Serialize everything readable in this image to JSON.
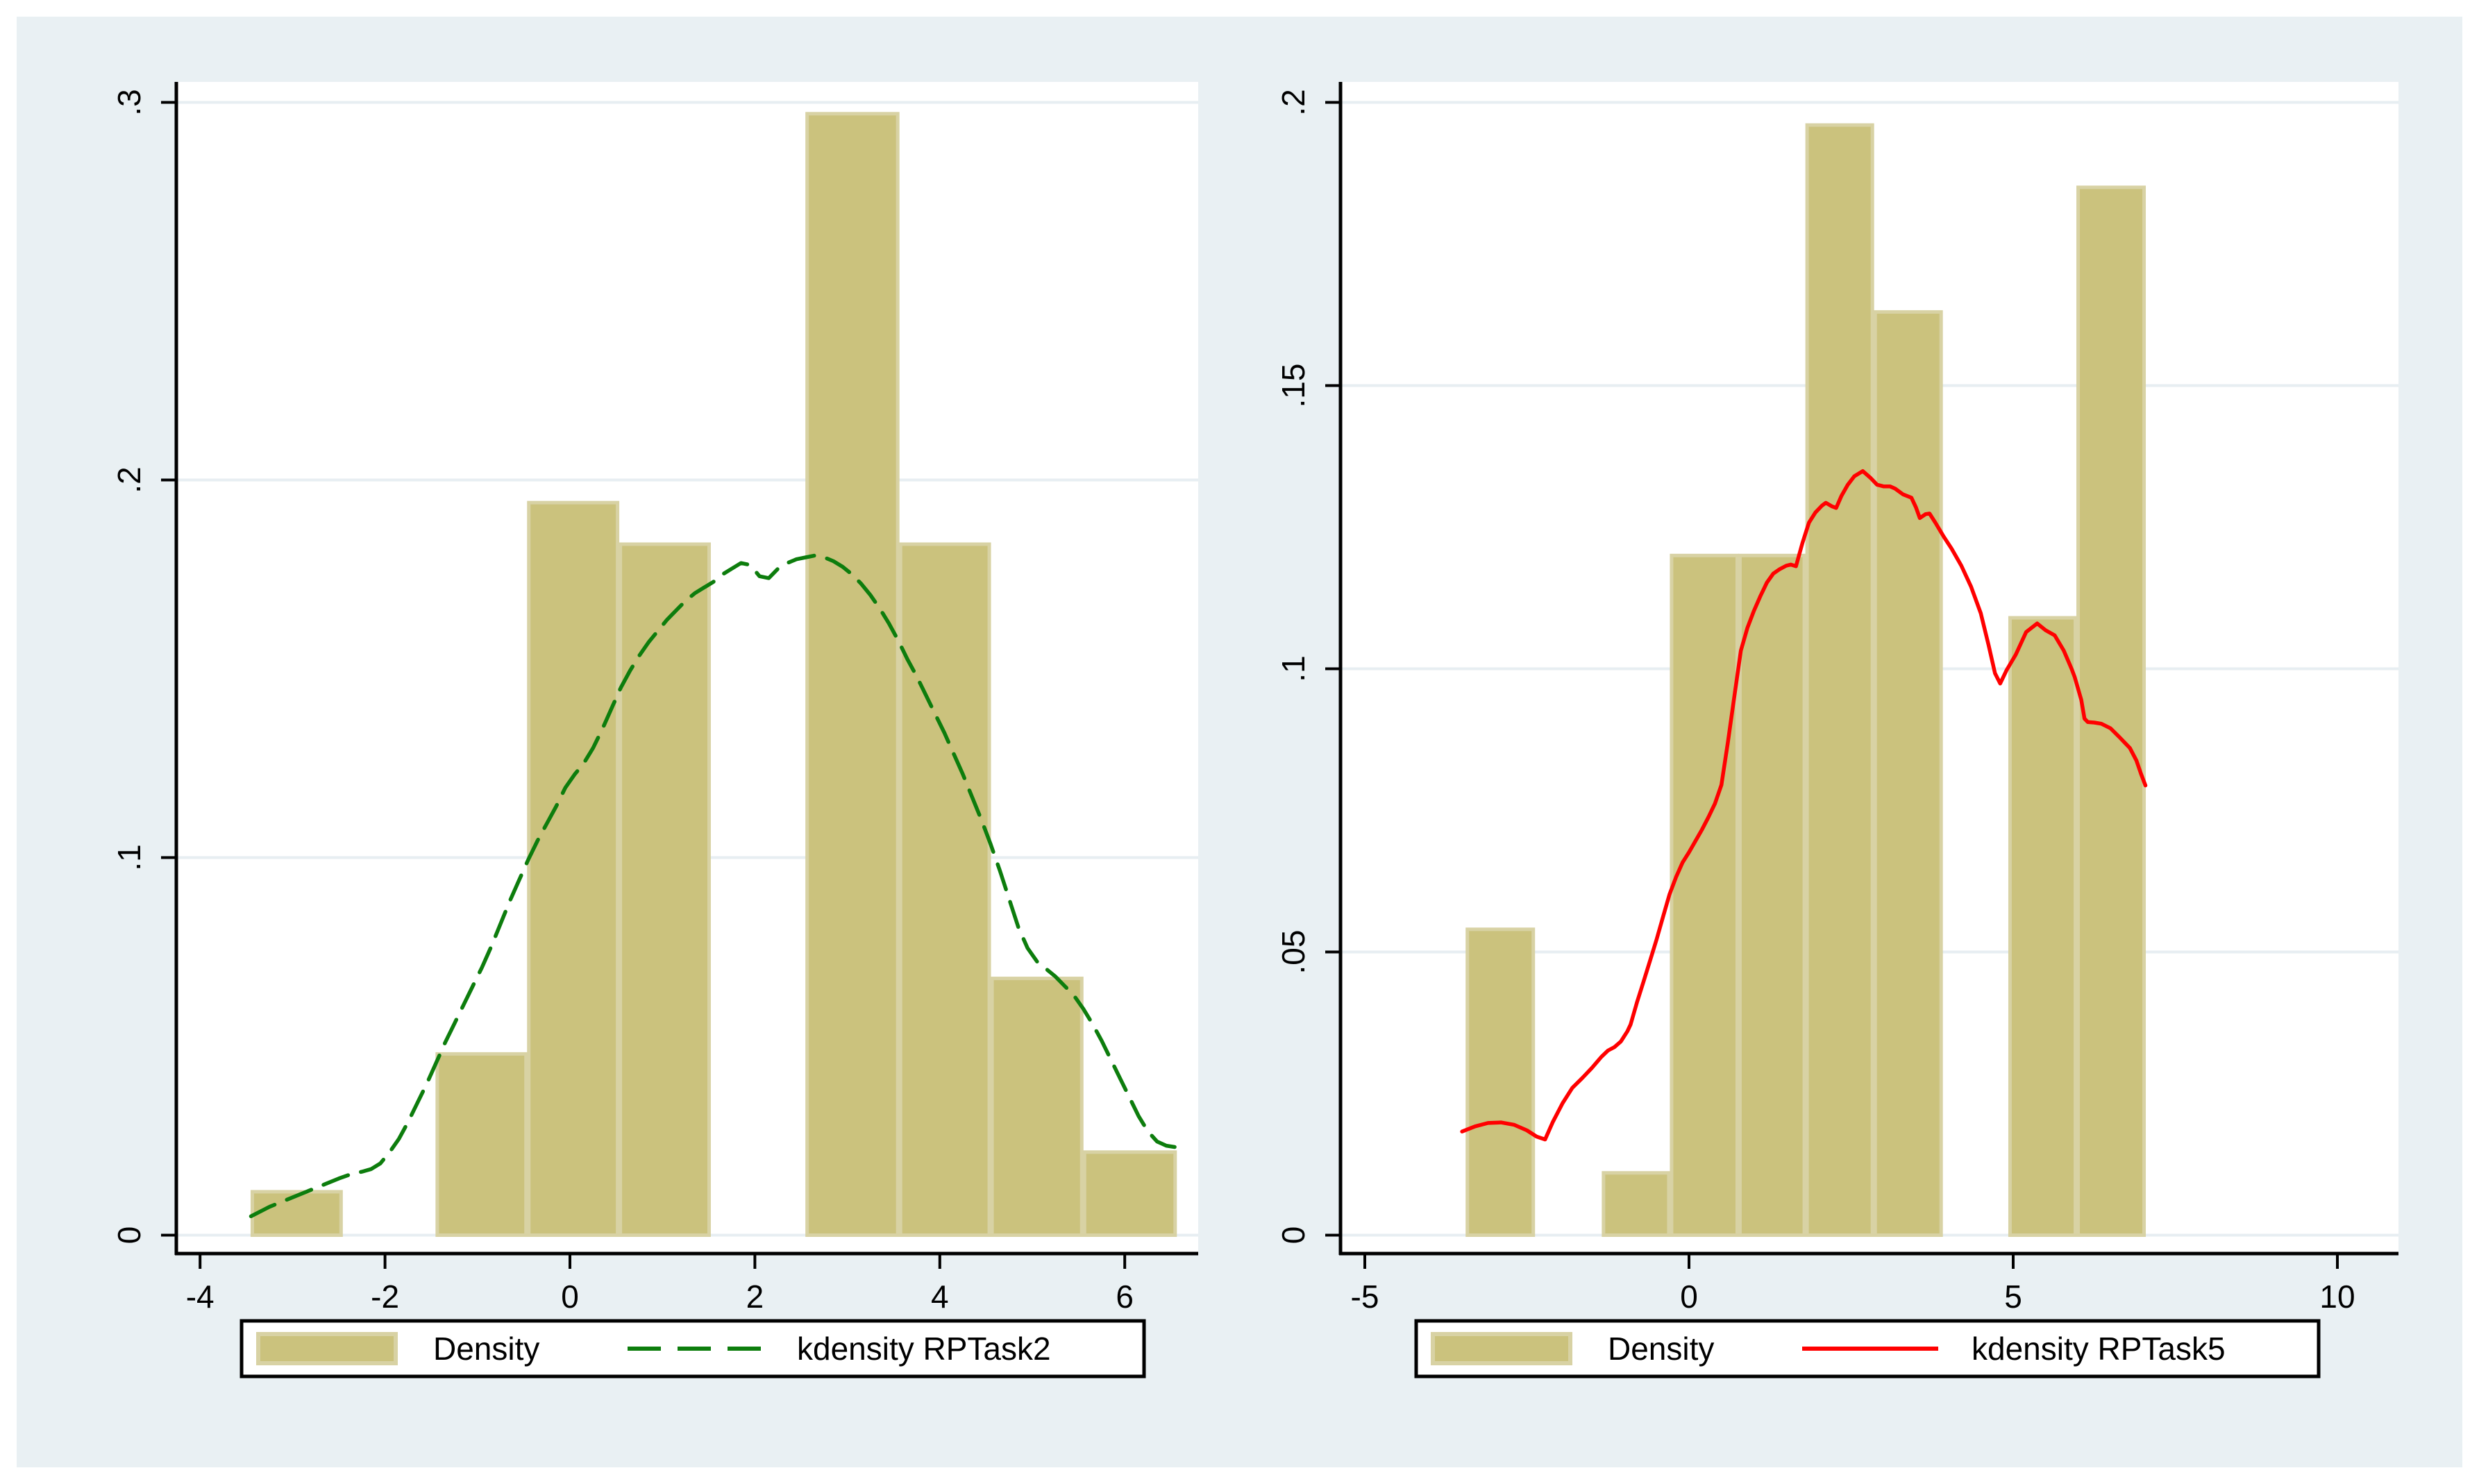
{
  "colors": {
    "page_bg": "#ffffff",
    "graph_bg": "#E9F0F3",
    "plot_bg": "#ffffff",
    "gridline": "#E7EEF2",
    "axis": "#000000",
    "bar_fill": "#CBC27D",
    "bar_stroke": "#D8D2A4",
    "kde_green": "#0D7D0D",
    "kde_red": "#FF0000",
    "legend_bg": "#ffffff",
    "legend_border": "#000000"
  },
  "chart_data": [
    {
      "type": "bar",
      "subtype": "histogram_with_kdensity",
      "panel": "left",
      "title": "",
      "xlabel": "",
      "ylabel": "",
      "xlim": [
        -4.26,
        6.79
      ],
      "ylim": [
        0,
        0.305
      ],
      "grid": true,
      "x_ticks": [
        {
          "value": -4,
          "label": "-4"
        },
        {
          "value": -2,
          "label": "-2"
        },
        {
          "value": 0,
          "label": "0"
        },
        {
          "value": 2,
          "label": "2"
        },
        {
          "value": 4,
          "label": "4"
        },
        {
          "value": 6,
          "label": "6"
        }
      ],
      "y_ticks": [
        {
          "value": 0,
          "label": "0"
        },
        {
          "value": 0.1,
          "label": ".1"
        },
        {
          "value": 0.2,
          "label": ".2"
        },
        {
          "value": 0.3,
          "label": ".3"
        }
      ],
      "bars": [
        {
          "x0": -3.45,
          "x1": -2.46,
          "height": 0.0115
        },
        {
          "x0": -1.45,
          "x1": -0.46,
          "height": 0.048
        },
        {
          "x0": -0.46,
          "x1": 0.53,
          "height": 0.194
        },
        {
          "x0": 0.53,
          "x1": 1.52,
          "height": 0.183
        },
        {
          "x0": 2.55,
          "x1": 3.56,
          "height": 0.297
        },
        {
          "x0": 3.56,
          "x1": 4.55,
          "height": 0.183
        },
        {
          "x0": 4.55,
          "x1": 5.55,
          "height": 0.068
        },
        {
          "x0": 5.55,
          "x1": 6.56,
          "height": 0.022
        }
      ],
      "kde": {
        "name": "kdensity RPTask2",
        "color": "#0D7D0D",
        "dashed": true,
        "points": [
          [
            -3.45,
            0.005
          ],
          [
            -3.25,
            0.0075
          ],
          [
            -3.05,
            0.0095
          ],
          [
            -2.85,
            0.0115
          ],
          [
            -2.65,
            0.0135
          ],
          [
            -2.5,
            0.015
          ],
          [
            -2.35,
            0.0163
          ],
          [
            -2.25,
            0.0168
          ],
          [
            -2.15,
            0.0175
          ],
          [
            -2.05,
            0.019
          ],
          [
            -1.95,
            0.022
          ],
          [
            -1.85,
            0.0255
          ],
          [
            -1.75,
            0.03
          ],
          [
            -1.65,
            0.035
          ],
          [
            -1.55,
            0.04
          ],
          [
            -1.45,
            0.0455
          ],
          [
            -1.35,
            0.051
          ],
          [
            -1.25,
            0.056
          ],
          [
            -1.15,
            0.061
          ],
          [
            -1.05,
            0.066
          ],
          [
            -0.95,
            0.071
          ],
          [
            -0.85,
            0.0765
          ],
          [
            -0.75,
            0.0825
          ],
          [
            -0.65,
            0.0885
          ],
          [
            -0.55,
            0.094
          ],
          [
            -0.45,
            0.0995
          ],
          [
            -0.35,
            0.1045
          ],
          [
            -0.25,
            0.109
          ],
          [
            -0.15,
            0.1135
          ],
          [
            -0.05,
            0.1185
          ],
          [
            0.05,
            0.122
          ],
          [
            0.15,
            0.125
          ],
          [
            0.25,
            0.129
          ],
          [
            0.35,
            0.134
          ],
          [
            0.45,
            0.1395
          ],
          [
            0.55,
            0.145
          ],
          [
            0.65,
            0.1495
          ],
          [
            0.75,
            0.1535
          ],
          [
            0.85,
            0.157
          ],
          [
            0.95,
            0.16
          ],
          [
            1.05,
            0.163
          ],
          [
            1.15,
            0.1655
          ],
          [
            1.25,
            0.168
          ],
          [
            1.35,
            0.17
          ],
          [
            1.45,
            0.1715
          ],
          [
            1.55,
            0.173
          ],
          [
            1.65,
            0.175
          ],
          [
            1.75,
            0.1765
          ],
          [
            1.85,
            0.178
          ],
          [
            1.95,
            0.1775
          ],
          [
            2.05,
            0.1745
          ],
          [
            2.15,
            0.174
          ],
          [
            2.25,
            0.1765
          ],
          [
            2.35,
            0.178
          ],
          [
            2.45,
            0.179
          ],
          [
            2.55,
            0.1795
          ],
          [
            2.65,
            0.18
          ],
          [
            2.75,
            0.1795
          ],
          [
            2.85,
            0.1785
          ],
          [
            2.95,
            0.177
          ],
          [
            3.05,
            0.175
          ],
          [
            3.15,
            0.1725
          ],
          [
            3.25,
            0.1695
          ],
          [
            3.35,
            0.166
          ],
          [
            3.45,
            0.162
          ],
          [
            3.55,
            0.1575
          ],
          [
            3.65,
            0.1525
          ],
          [
            3.75,
            0.148
          ],
          [
            3.85,
            0.143
          ],
          [
            3.95,
            0.138
          ],
          [
            4.05,
            0.133
          ],
          [
            4.15,
            0.1275
          ],
          [
            4.25,
            0.122
          ],
          [
            4.35,
            0.116
          ],
          [
            4.45,
            0.11
          ],
          [
            4.55,
            0.1035
          ],
          [
            4.65,
            0.0965
          ],
          [
            4.75,
            0.089
          ],
          [
            4.85,
            0.0815
          ],
          [
            4.95,
            0.076
          ],
          [
            5.05,
            0.0725
          ],
          [
            5.15,
            0.0705
          ],
          [
            5.25,
            0.0685
          ],
          [
            5.35,
            0.066
          ],
          [
            5.45,
            0.0635
          ],
          [
            5.55,
            0.06
          ],
          [
            5.65,
            0.056
          ],
          [
            5.75,
            0.0515
          ],
          [
            5.85,
            0.0465
          ],
          [
            5.95,
            0.0415
          ],
          [
            6.05,
            0.0365
          ],
          [
            6.15,
            0.0315
          ],
          [
            6.25,
            0.0275
          ],
          [
            6.35,
            0.0248
          ],
          [
            6.45,
            0.0237
          ],
          [
            6.55,
            0.0233
          ]
        ]
      },
      "legend": {
        "density_label": "Density",
        "kde_label": "kdensity RPTask2"
      }
    },
    {
      "type": "bar",
      "subtype": "histogram_with_kdensity",
      "panel": "right",
      "title": "",
      "xlabel": "",
      "ylabel": "",
      "xlim": [
        -5.37,
        10.94
      ],
      "ylim": [
        0,
        0.205
      ],
      "grid": true,
      "x_ticks": [
        {
          "value": -5,
          "label": "-5"
        },
        {
          "value": 0,
          "label": "0"
        },
        {
          "value": 5,
          "label": "5"
        },
        {
          "value": 10,
          "label": "10"
        }
      ],
      "y_ticks": [
        {
          "value": 0,
          "label": "0"
        },
        {
          "value": 0.05,
          "label": ".05"
        },
        {
          "value": 0.1,
          "label": ".1"
        },
        {
          "value": 0.15,
          "label": ".15"
        },
        {
          "value": 0.2,
          "label": ".2"
        }
      ],
      "bars": [
        {
          "x0": -3.44,
          "x1": -2.38,
          "height": 0.054
        },
        {
          "x0": -1.34,
          "x1": -0.29,
          "height": 0.011
        },
        {
          "x0": -0.29,
          "x1": 0.765,
          "height": 0.12
        },
        {
          "x0": 0.765,
          "x1": 1.8,
          "height": 0.12
        },
        {
          "x0": 1.8,
          "x1": 2.85,
          "height": 0.196
        },
        {
          "x0": 2.85,
          "x1": 3.91,
          "height": 0.163
        },
        {
          "x0": 4.93,
          "x1": 5.98,
          "height": 0.109
        },
        {
          "x0": 5.98,
          "x1": 7.04,
          "height": 0.185
        }
      ],
      "kde": {
        "name": "kdensity RPTask5",
        "color": "#FF0000",
        "dashed": false,
        "points": [
          [
            -3.5,
            0.0183
          ],
          [
            -3.3,
            0.0192
          ],
          [
            -3.1,
            0.0198
          ],
          [
            -2.9,
            0.0199
          ],
          [
            -2.7,
            0.0195
          ],
          [
            -2.5,
            0.0185
          ],
          [
            -2.35,
            0.0174
          ],
          [
            -2.22,
            0.0169
          ],
          [
            -2.1,
            0.02
          ],
          [
            -1.95,
            0.0233
          ],
          [
            -1.8,
            0.026
          ],
          [
            -1.65,
            0.0277
          ],
          [
            -1.5,
            0.0295
          ],
          [
            -1.35,
            0.0315
          ],
          [
            -1.25,
            0.0326
          ],
          [
            -1.15,
            0.0332
          ],
          [
            -1.05,
            0.0342
          ],
          [
            -0.95,
            0.036
          ],
          [
            -0.9,
            0.0372
          ],
          [
            -0.8,
            0.0412
          ],
          [
            -0.7,
            0.0448
          ],
          [
            -0.6,
            0.0485
          ],
          [
            -0.5,
            0.0522
          ],
          [
            -0.4,
            0.0562
          ],
          [
            -0.3,
            0.0602
          ],
          [
            -0.2,
            0.0632
          ],
          [
            -0.1,
            0.0658
          ],
          [
            0,
            0.0676
          ],
          [
            0.1,
            0.0696
          ],
          [
            0.2,
            0.0716
          ],
          [
            0.3,
            0.0738
          ],
          [
            0.4,
            0.0762
          ],
          [
            0.5,
            0.0795
          ],
          [
            0.6,
            0.087
          ],
          [
            0.7,
            0.0952
          ],
          [
            0.8,
            0.1032
          ],
          [
            0.9,
            0.1072
          ],
          [
            1,
            0.1102
          ],
          [
            1.1,
            0.1128
          ],
          [
            1.2,
            0.1152
          ],
          [
            1.3,
            0.1168
          ],
          [
            1.4,
            0.1176
          ],
          [
            1.5,
            0.1182
          ],
          [
            1.57,
            0.1184
          ],
          [
            1.65,
            0.1181
          ],
          [
            1.75,
            0.1222
          ],
          [
            1.85,
            0.1258
          ],
          [
            1.95,
            0.1276
          ],
          [
            2.05,
            0.1288
          ],
          [
            2.11,
            0.1293
          ],
          [
            2.2,
            0.1287
          ],
          [
            2.27,
            0.1284
          ],
          [
            2.35,
            0.1305
          ],
          [
            2.45,
            0.1325
          ],
          [
            2.55,
            0.134
          ],
          [
            2.68,
            0.1349
          ],
          [
            2.8,
            0.1337
          ],
          [
            2.9,
            0.1325
          ],
          [
            3,
            0.1322
          ],
          [
            3.1,
            0.1322
          ],
          [
            3.18,
            0.1318
          ],
          [
            3.3,
            0.1308
          ],
          [
            3.43,
            0.1302
          ],
          [
            3.5,
            0.1285
          ],
          [
            3.56,
            0.1266
          ],
          [
            3.65,
            0.1273
          ],
          [
            3.71,
            0.1274
          ],
          [
            3.8,
            0.1258
          ],
          [
            3.93,
            0.1233
          ],
          [
            4.05,
            0.1212
          ],
          [
            4.2,
            0.1182
          ],
          [
            4.35,
            0.1145
          ],
          [
            4.5,
            0.1098
          ],
          [
            4.62,
            0.1042
          ],
          [
            4.72,
            0.0992
          ],
          [
            4.8,
            0.0974
          ],
          [
            4.9,
            0.0998
          ],
          [
            5.04,
            0.1025
          ],
          [
            5.2,
            0.1065
          ],
          [
            5.37,
            0.108
          ],
          [
            5.5,
            0.1068
          ],
          [
            5.64,
            0.1059
          ],
          [
            5.78,
            0.1032
          ],
          [
            5.9,
            0.1
          ],
          [
            5.95,
            0.0985
          ],
          [
            6.05,
            0.0945
          ],
          [
            6.1,
            0.0912
          ],
          [
            6.15,
            0.0906
          ],
          [
            6.25,
            0.0905
          ],
          [
            6.36,
            0.0903
          ],
          [
            6.5,
            0.0895
          ],
          [
            6.65,
            0.0878
          ],
          [
            6.8,
            0.086
          ],
          [
            6.9,
            0.0838
          ],
          [
            6.97,
            0.0815
          ],
          [
            7.04,
            0.0794
          ]
        ]
      },
      "legend": {
        "density_label": "Density",
        "kde_label": "kdensity RPTask5"
      }
    }
  ]
}
